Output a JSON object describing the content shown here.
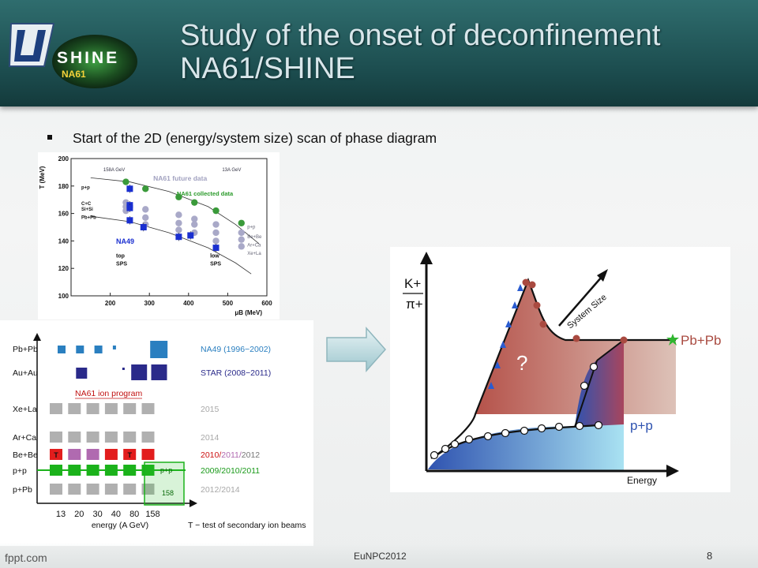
{
  "slide": {
    "title_line1": "Study of the onset of deconfinement",
    "title_line2": "NA61/SHINE",
    "logo_text": "SHINE",
    "logo_sub": "NA61",
    "bullet": "Start of the 2D (energy/system size) scan of phase diagram",
    "footer_left": "fppt.com",
    "footer_center": "EuNPC2012",
    "page_number": "8"
  },
  "chart_data": [
    {
      "type": "scatter",
      "xlabel": "μB (MeV)",
      "ylabel": "T (MeV)",
      "xlim": [
        100,
        600
      ],
      "ylim": [
        100,
        200
      ],
      "x_ticks": [
        "200",
        "300",
        "400",
        "500",
        "600"
      ],
      "y_ticks": [
        "100",
        "120",
        "140",
        "160",
        "180",
        "200"
      ],
      "top_labels": [
        "158A GeV",
        "13A GeV"
      ],
      "system_labels_left": [
        "p+p",
        "C+C",
        "Si+Si",
        "Pb+Pb"
      ],
      "system_labels_right": [
        "p+p",
        "Be+Be",
        "Ar+Ca",
        "Xe+La"
      ],
      "annotations": [
        "NA61 future data",
        "NA61 collected data",
        "NA49",
        "top\nSPS",
        "low\nSPS"
      ],
      "series": [
        {
          "name": "NA61 collected data",
          "color": "#3a9a3a",
          "points": [
            [
              240,
              183
            ],
            [
              290,
              178
            ],
            [
              375,
              172
            ],
            [
              415,
              168
            ],
            [
              470,
              162
            ],
            [
              535,
              153
            ]
          ]
        },
        {
          "name": "NA61 future data",
          "color": "#a9a9c8",
          "points": [
            [
              240,
              168
            ],
            [
              290,
              163
            ],
            [
              375,
              159
            ],
            [
              415,
              156
            ],
            [
              470,
              152
            ],
            [
              535,
              146
            ],
            [
              240,
              165
            ],
            [
              290,
              157
            ],
            [
              375,
              153
            ],
            [
              415,
              152
            ],
            [
              470,
              146
            ],
            [
              535,
              141
            ],
            [
              240,
              162
            ],
            [
              290,
              152
            ],
            [
              375,
              148
            ],
            [
              415,
              146
            ],
            [
              470,
              140
            ],
            [
              535,
              136
            ]
          ]
        },
        {
          "name": "NA49",
          "color": "#1a2fd0",
          "points": [
            [
              250,
              178
            ],
            [
              250,
              166
            ],
            [
              250,
              164
            ],
            [
              250,
              155
            ],
            [
              285,
              150
            ],
            [
              375,
              143
            ],
            [
              405,
              144
            ],
            [
              470,
              135
            ]
          ]
        }
      ]
    },
    {
      "type": "table",
      "y_categories": [
        "Pb+Pb",
        "Au+Au",
        "Xe+La",
        "Ar+Ca",
        "Be+Be",
        "p+p",
        "p+Pb"
      ],
      "x_categories": [
        "13",
        "20",
        "30",
        "40",
        "80",
        "158"
      ],
      "xlabel": "energy (A GeV)",
      "legend": [
        "NA49 (1996−2002)",
        "STAR (2008−2011)",
        "NA61 ion program",
        "2015",
        "2014",
        "2010/2011/2012",
        "2009/2010/2011",
        "2012/2014"
      ],
      "box_labels": [
        "p+p",
        "158"
      ],
      "note": "T − test of secondary ion beams",
      "colors": {
        "na49": "#2a7fc0",
        "star": "#2a2a8a",
        "grey": "#b0b0b0",
        "red": "#e21d1d",
        "purple": "#b06ab0",
        "green": "#1bb21b"
      }
    },
    {
      "type": "line",
      "xlabel": "Energy",
      "ylabel": "K+/π+",
      "labels": [
        "System Size",
        "Pb+Pb",
        "p+p",
        "?"
      ]
    }
  ]
}
